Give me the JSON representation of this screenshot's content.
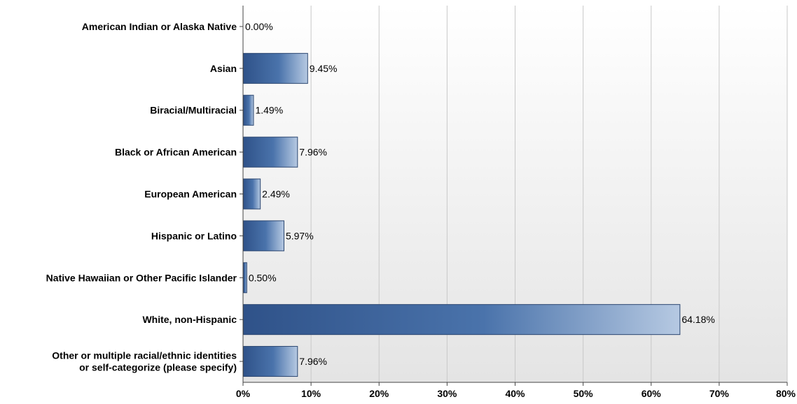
{
  "chart_data": {
    "type": "bar",
    "orientation": "horizontal",
    "categories": [
      [
        "American Indian or Alaska Native"
      ],
      [
        "Asian"
      ],
      [
        "Biracial/Multiracial"
      ],
      [
        "Black or African American"
      ],
      [
        "European American"
      ],
      [
        "Hispanic or Latino"
      ],
      [
        "Native Hawaiian or Other Pacific Islander"
      ],
      [
        "White, non-Hispanic"
      ],
      [
        "Other or multiple racial/ethnic identities",
        "or self-categorize (please specify)"
      ]
    ],
    "values": [
      0.0,
      9.45,
      1.49,
      7.96,
      2.49,
      5.97,
      0.5,
      64.18,
      7.96
    ],
    "value_labels": [
      "0.00%",
      "9.45%",
      "1.49%",
      "7.96%",
      "2.49%",
      "5.97%",
      "0.50%",
      "64.18%",
      "7.96%"
    ],
    "x_ticks": [
      0,
      10,
      20,
      30,
      40,
      50,
      60,
      70,
      80
    ],
    "x_tick_labels": [
      "0%",
      "10%",
      "20%",
      "30%",
      "40%",
      "50%",
      "60%",
      "70%",
      "80%"
    ],
    "xlim": [
      0,
      80
    ],
    "grid": true,
    "legend": "none",
    "colors": {
      "bar_dark": "#2f5289",
      "bar_mid": "#4a73ab",
      "bar_light": "#b6c9e2",
      "bar_stroke": "#2a4570",
      "grid": "#c8c8c8",
      "background_top": "#ffffff",
      "background_bottom": "#e4e4e4",
      "axis": "#444444",
      "text": "#000000"
    }
  }
}
